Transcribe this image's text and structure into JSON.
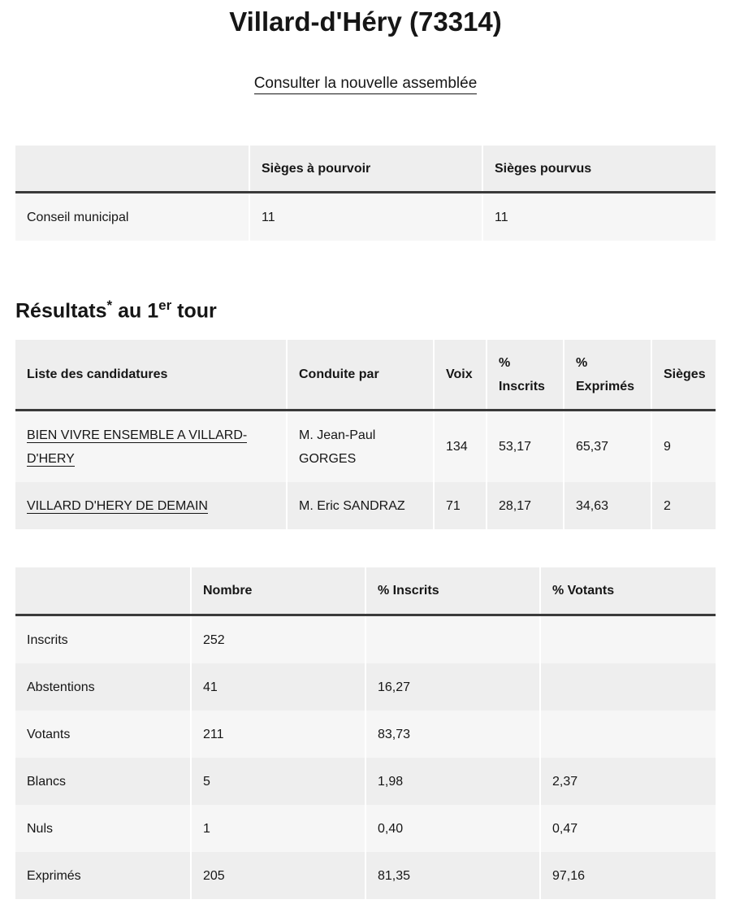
{
  "title": "Villard-d'Héry (73314)",
  "link": "Consulter la nouvelle assemblée",
  "seats_table": {
    "headers": [
      "",
      "Sièges à pourvoir",
      "Sièges pourvus"
    ],
    "rows": [
      [
        "Conseil municipal",
        "11",
        "11"
      ]
    ]
  },
  "results_heading": {
    "a": "Résultats",
    "star": "*",
    "b": " au 1",
    "sup": "er",
    "c": " tour"
  },
  "results_table": {
    "headers": [
      "Liste des candidatures",
      "Conduite par",
      "Voix",
      "% Inscrits",
      "% Exprimés",
      "Sièges"
    ],
    "rows": [
      [
        "BIEN VIVRE ENSEMBLE A VILLARD-D'HERY",
        "M. Jean-Paul GORGES",
        "134",
        "53,17",
        "65,37",
        "9"
      ],
      [
        "VILLARD D'HERY DE DEMAIN",
        "M. Eric SANDRAZ",
        "71",
        "28,17",
        "34,63",
        "2"
      ]
    ]
  },
  "stats_table": {
    "headers": [
      "",
      "Nombre",
      "% Inscrits",
      "% Votants"
    ],
    "rows": [
      [
        "Inscrits",
        "252",
        "",
        ""
      ],
      [
        "Abstentions",
        "41",
        "16,27",
        ""
      ],
      [
        "Votants",
        "211",
        "83,73",
        ""
      ],
      [
        "Blancs",
        "5",
        "1,98",
        "2,37"
      ],
      [
        "Nuls",
        "1",
        "0,40",
        "0,47"
      ],
      [
        "Exprimés",
        "205",
        "81,35",
        "97,16"
      ]
    ]
  }
}
